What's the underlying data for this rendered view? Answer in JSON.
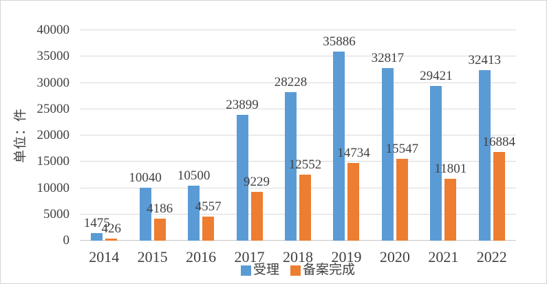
{
  "chart_data": {
    "type": "bar",
    "title": "",
    "categories": [
      "2014",
      "2015",
      "2016",
      "2017",
      "2018",
      "2019",
      "2020",
      "2021",
      "2022"
    ],
    "series": [
      {
        "name": "受理",
        "color": "#5B9BD5",
        "values": [
          1475,
          10040,
          10500,
          23899,
          28228,
          35886,
          32817,
          29421,
          32413
        ]
      },
      {
        "name": "备案完成",
        "color": "#ED7D31",
        "values": [
          426,
          4186,
          4557,
          9229,
          12552,
          14734,
          15547,
          11801,
          16884
        ]
      }
    ],
    "xlabel": "",
    "ylabel": "单位：件",
    "ylim": [
      0,
      40000
    ],
    "ytick_step": 5000,
    "ytick_labels": [
      "0",
      "5000",
      "10000",
      "15000",
      "20000",
      "25000",
      "30000",
      "35000",
      "40000"
    ],
    "grid": true,
    "data_labels": true,
    "legend_position": "bottom"
  },
  "styles": {
    "grid_color": "#d9d9d9",
    "axis_line_color": "#c6c6c6",
    "text_color": "#404040",
    "frame_border_color": "#d4d4d4"
  }
}
